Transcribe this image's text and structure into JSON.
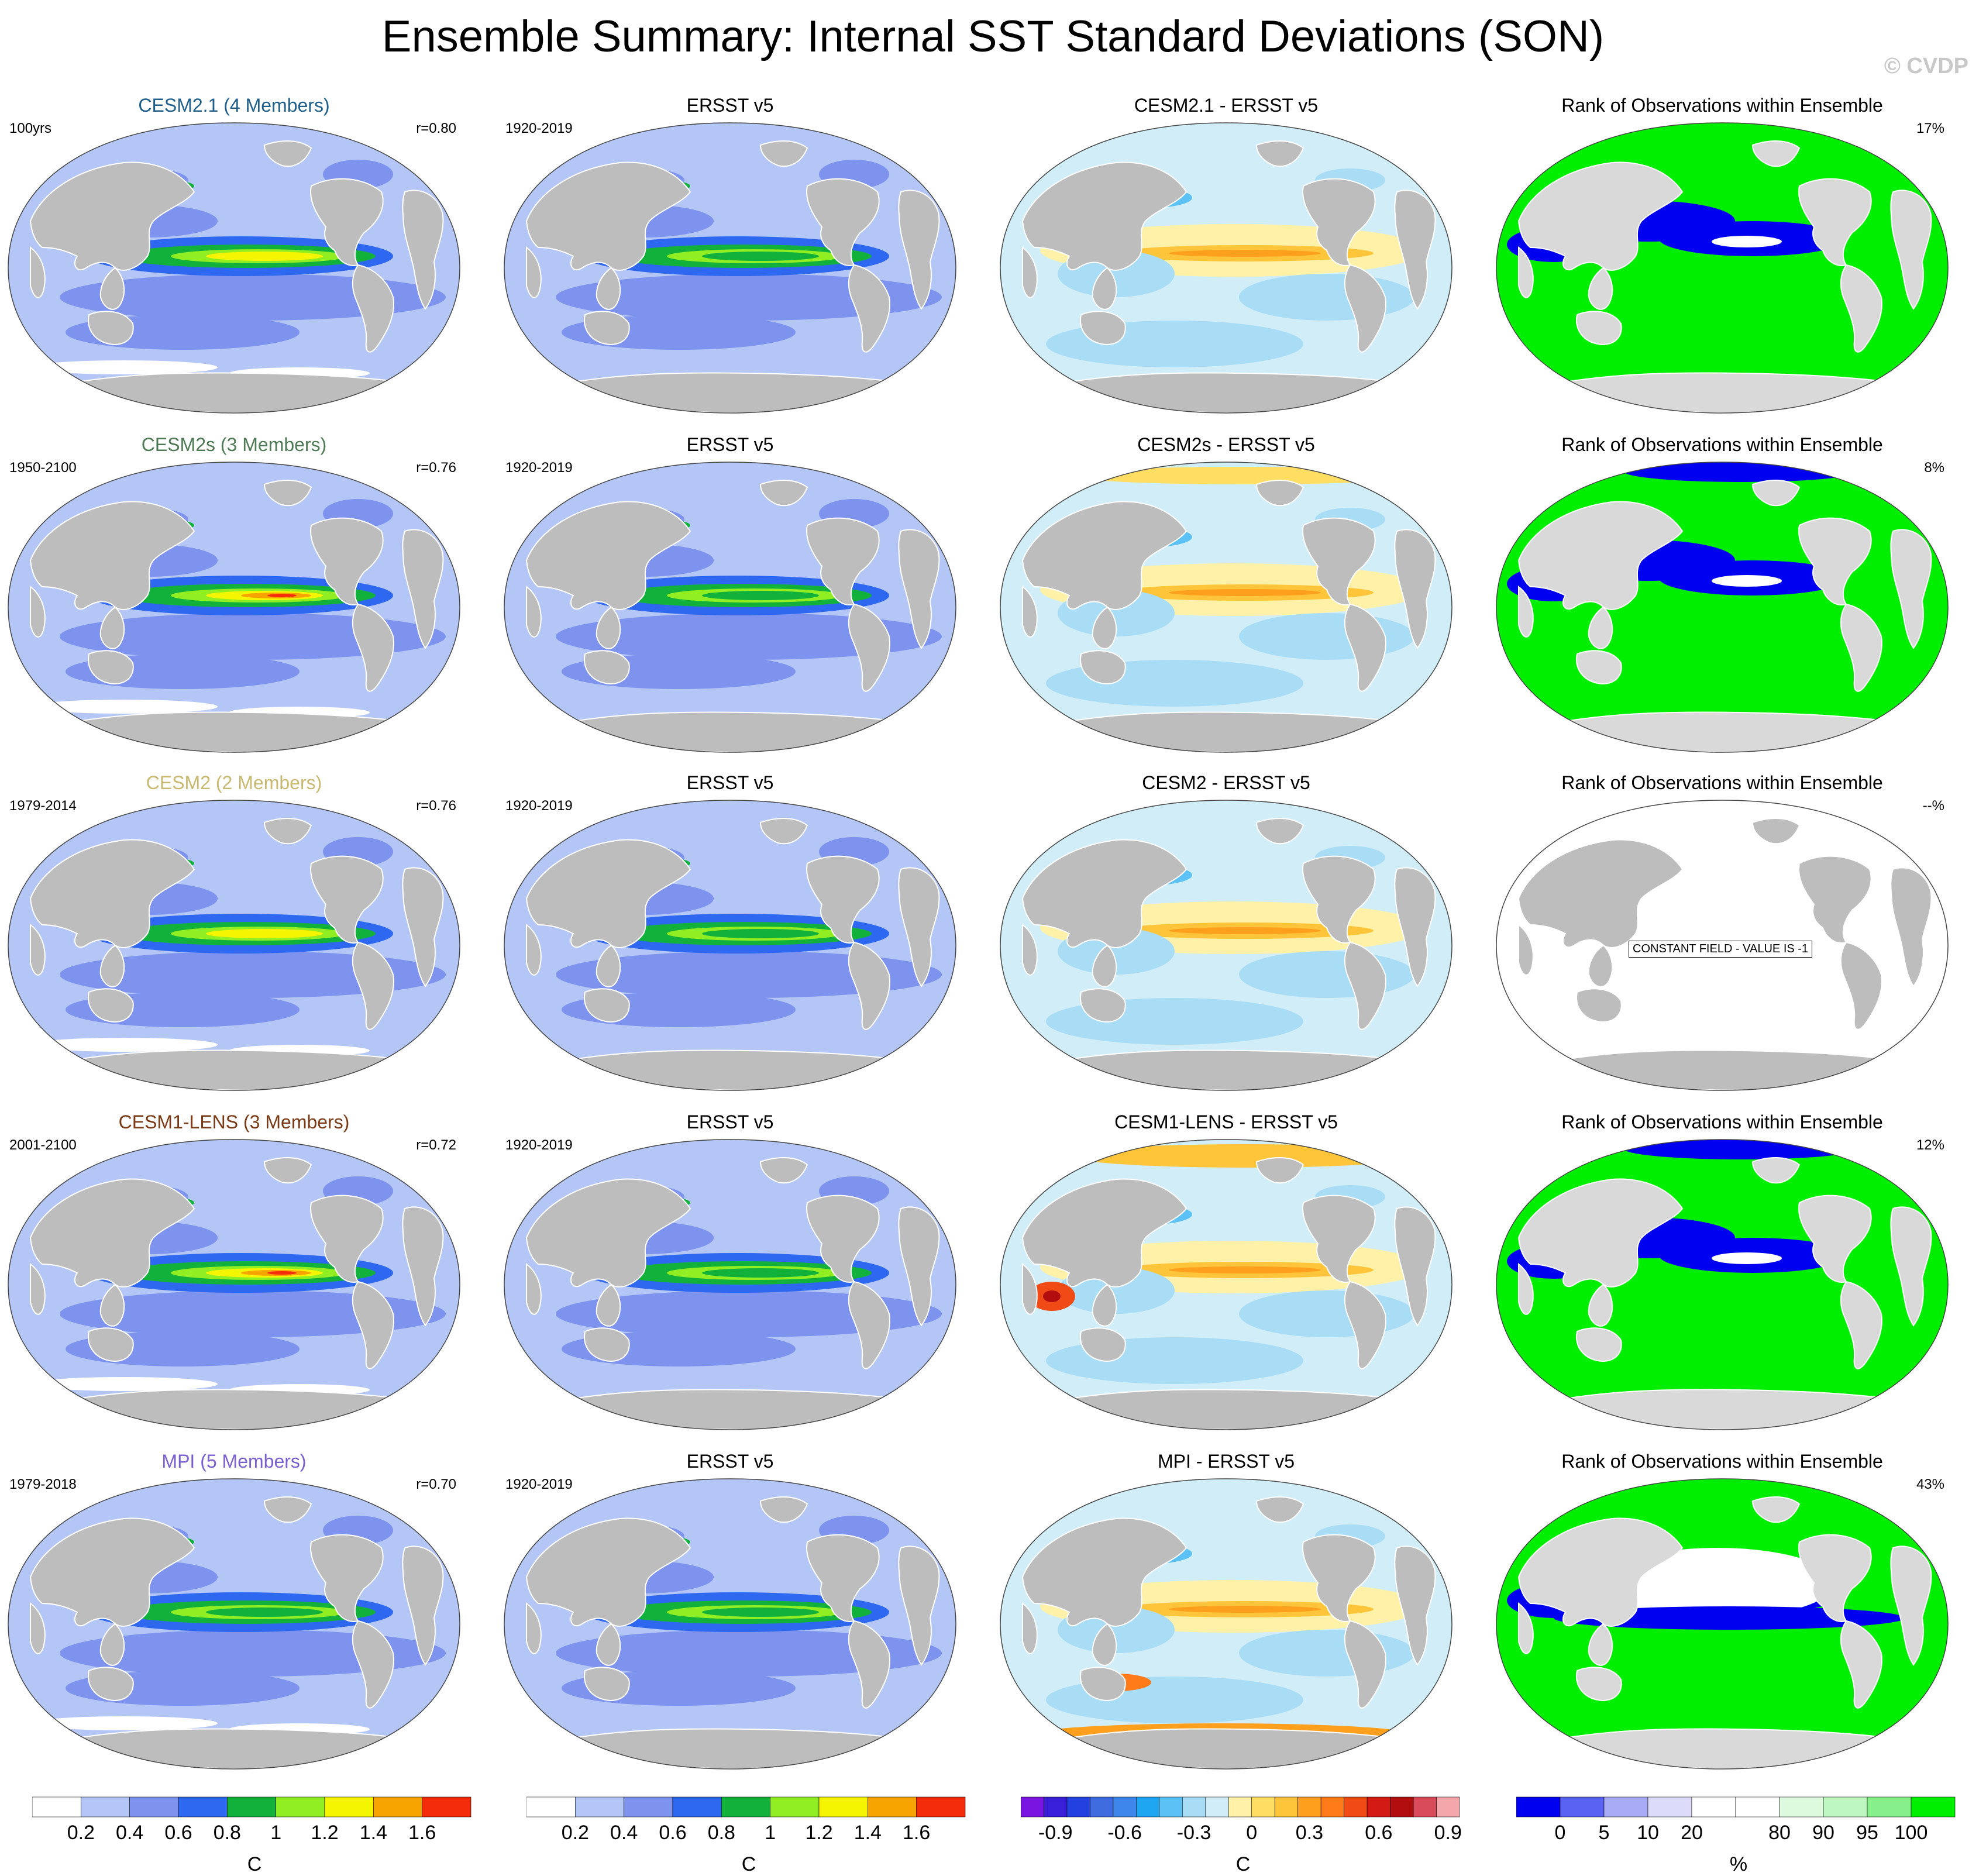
{
  "title": "Ensemble Summary: Internal SST Standard Deviations (SON)",
  "credit": "© CVDP",
  "rows": [
    {
      "model": {
        "title": "CESM2.1 (4 Members)",
        "title_color": "#1f5f8b",
        "period": "100yrs",
        "corr": "r=0.80"
      },
      "obs": {
        "title": "ERSST v5",
        "period": "1920-2019"
      },
      "diff": {
        "title": "CESM2.1 - ERSST v5"
      },
      "rank": {
        "title": "Rank of Observations within Ensemble",
        "pct": "17%"
      }
    },
    {
      "model": {
        "title": "CESM2s (3 Members)",
        "title_color": "#4e7a55",
        "period": "1950-2100",
        "corr": "r=0.76"
      },
      "obs": {
        "title": "ERSST v5",
        "period": "1920-2019"
      },
      "diff": {
        "title": "CESM2s - ERSST v5"
      },
      "rank": {
        "title": "Rank of Observations within Ensemble",
        "pct": "8%"
      }
    },
    {
      "model": {
        "title": "CESM2 (2 Members)",
        "title_color": "#c9b870",
        "period": "1979-2014",
        "corr": "r=0.76"
      },
      "obs": {
        "title": "ERSST v5",
        "period": "1920-2019"
      },
      "diff": {
        "title": "CESM2 - ERSST v5"
      },
      "rank": {
        "title": "Rank of Observations within Ensemble",
        "pct": "--%",
        "constant": "CONSTANT FIELD - VALUE IS -1"
      }
    },
    {
      "model": {
        "title": "CESM1-LENS (3 Members)",
        "title_color": "#7a3a16",
        "period": "2001-2100",
        "corr": "r=0.72"
      },
      "obs": {
        "title": "ERSST v5",
        "period": "1920-2019"
      },
      "diff": {
        "title": "CESM1-LENS - ERSST v5"
      },
      "rank": {
        "title": "Rank of Observations within Ensemble",
        "pct": "12%"
      }
    },
    {
      "model": {
        "title": "MPI (5 Members)",
        "title_color": "#7a5fd0",
        "period": "1979-2018",
        "corr": "r=0.70"
      },
      "obs": {
        "title": "ERSST v5",
        "period": "1920-2019"
      },
      "diff": {
        "title": "MPI - ERSST v5"
      },
      "rank": {
        "title": "Rank of Observations within Ensemble",
        "pct": "43%"
      }
    }
  ],
  "colorbars": {
    "sst": {
      "colors": [
        "#ffffff",
        "#b4c6f5",
        "#7d93ee",
        "#2f68f0",
        "#12b13b",
        "#91ee22",
        "#f6f500",
        "#f7a300",
        "#f52c0c"
      ],
      "ticks": [
        "0.2",
        "0.4",
        "0.6",
        "0.8",
        "1",
        "1.2",
        "1.4",
        "1.6"
      ],
      "unit": "C"
    },
    "diff": {
      "colors": [
        "#7a14e0",
        "#3a1fd8",
        "#2340e0",
        "#3f6de0",
        "#3f86ea",
        "#1fa6f2",
        "#5cc2f5",
        "#a9dcf5",
        "#d1eef8",
        "#fff2a8",
        "#ffde63",
        "#ffc53a",
        "#ff9f1e",
        "#ff7a18",
        "#f04a16",
        "#d41a14",
        "#b20e10",
        "#d94a5a",
        "#f4a7aa"
      ],
      "ticks": [
        "-0.9",
        "-0.6",
        "-0.3",
        "0",
        "0.3",
        "0.6",
        "0.9"
      ],
      "unit": "C"
    },
    "rank": {
      "colors": [
        "#0000f0",
        "#5a62f4",
        "#a8acf6",
        "#dcdcfa",
        "#ffffff",
        "#ffffff",
        "#ddfade",
        "#bff7c0",
        "#88f08a",
        "#00ee00"
      ],
      "ticks": [
        "0",
        "5",
        "10",
        "20",
        "80",
        "90",
        "95",
        "100"
      ],
      "unit": "%"
    }
  }
}
